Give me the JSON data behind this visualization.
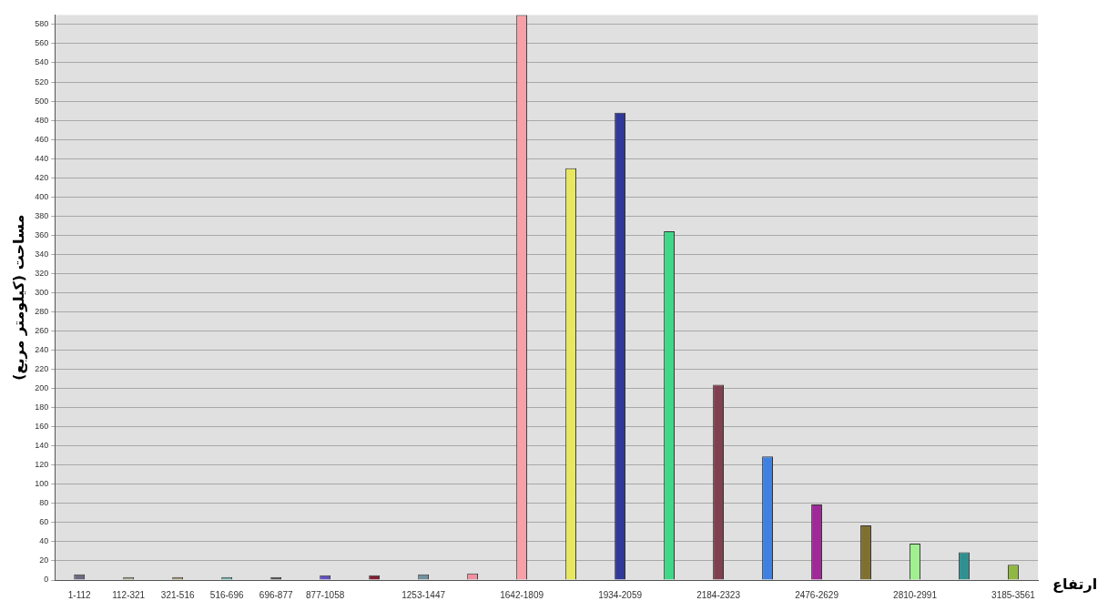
{
  "chart_data": {
    "type": "bar",
    "xlabel": "ارتفاع",
    "ylabel": "مساحت (کیلومتر مربع)",
    "categories": [
      "1-112",
      "112-321",
      "321-516",
      "516-696",
      "696-877",
      "877-1058",
      null,
      "1253-1447",
      null,
      "1642-1809",
      null,
      "1934-2059",
      null,
      "2184-2323",
      null,
      "2476-2629",
      null,
      "2810-2991",
      null,
      "3185-3561"
    ],
    "values": [
      6,
      3,
      3,
      3,
      3,
      5,
      5,
      6,
      7,
      590,
      430,
      488,
      364,
      204,
      129,
      79,
      57,
      38,
      29,
      16
    ],
    "colors": [
      "#6a6a80",
      "#a0a080",
      "#a09070",
      "#60b0a8",
      "#505050",
      "#6050c0",
      "#802030",
      "#7090a0",
      "#f090a0",
      "#f8a0a8",
      "#e8e860",
      "#303898",
      "#40d888",
      "#804050",
      "#4080e0",
      "#a02898",
      "#807030",
      "#a0f090",
      "#309090",
      "#90b840"
    ],
    "ylim": [
      0,
      590
    ],
    "yticks": [
      0,
      20,
      40,
      60,
      80,
      100,
      120,
      140,
      160,
      180,
      200,
      220,
      240,
      260,
      280,
      300,
      320,
      340,
      360,
      380,
      400,
      420,
      440,
      460,
      480,
      500,
      520,
      540,
      560,
      580
    ],
    "grid": "y",
    "legend": false
  }
}
